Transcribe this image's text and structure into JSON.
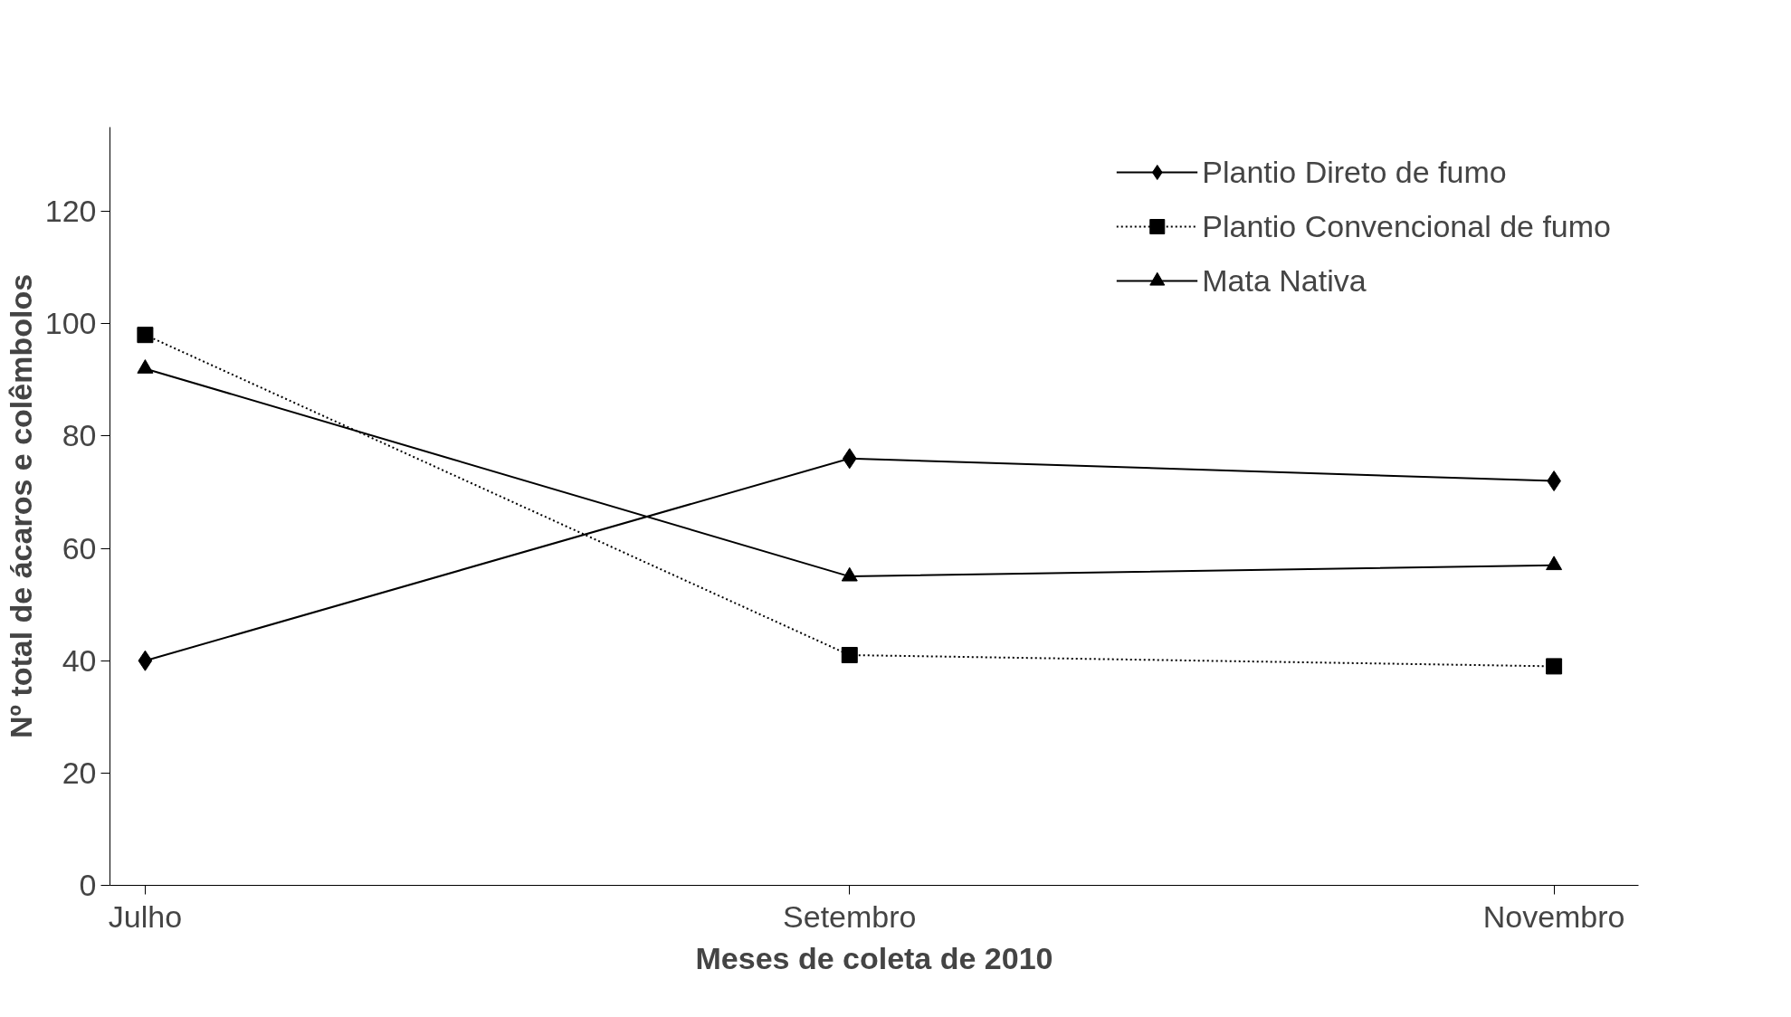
{
  "chart_data": {
    "type": "line",
    "xlabel": "Meses de coleta de 2010",
    "ylabel": "Nº total de ácaros e colêmbolos",
    "categories": [
      "Julho",
      "Setembro",
      "Novembro"
    ],
    "series": [
      {
        "name": "Plantio Direto de fumo",
        "color": "#000000",
        "values": [
          40,
          76,
          72
        ],
        "marker": "diamond",
        "line_style": "solid"
      },
      {
        "name": "Plantio Convencional de fumo",
        "color": "#000000",
        "values": [
          98,
          41,
          39
        ],
        "marker": "square",
        "line_style": "dotted"
      },
      {
        "name": "Mata Nativa",
        "color": "#000000",
        "values": [
          92,
          55,
          57
        ],
        "marker": "triangle",
        "line_style": "solid"
      }
    ],
    "ylim": [
      0,
      135
    ],
    "yticks": [
      0,
      20,
      40,
      60,
      80,
      100,
      120
    ],
    "grid": false,
    "legend": "top right"
  }
}
